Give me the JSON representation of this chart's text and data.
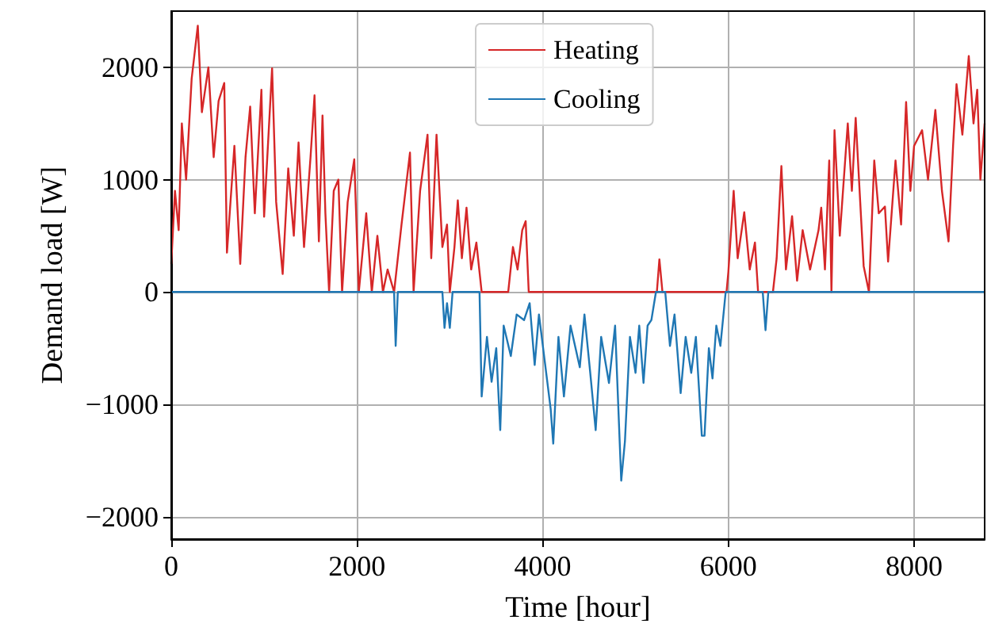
{
  "chart_data": {
    "type": "line",
    "xlabel": "Time [hour]",
    "ylabel": "Demand load [W]",
    "xlim": [
      0,
      8760
    ],
    "xticks": [
      0,
      2000,
      4000,
      6000,
      8000
    ],
    "ylim": [
      -2200,
      2500
    ],
    "yticks": [
      {
        "value": -2000,
        "label": "−2000"
      },
      {
        "value": -1000,
        "label": "−1000"
      },
      0,
      1000,
      2000
    ],
    "grid": true,
    "legend": "top",
    "marker": "none",
    "line_style": "solid",
    "series": [
      {
        "name": "Heating",
        "color": "#d62728",
        "x": [
          0,
          40,
          80,
          114,
          160,
          220,
          286,
          330,
          400,
          457,
          510,
          571,
          600,
          680,
          743,
          800,
          850,
          900,
          971,
          1000,
          1086,
          1130,
          1200,
          1260,
          1320,
          1371,
          1430,
          1500,
          1543,
          1590,
          1629,
          1660,
          1700,
          1750,
          1800,
          1840,
          1900,
          1971,
          2020,
          2100,
          2160,
          2220,
          2280,
          2330,
          2400,
          2480,
          2571,
          2610,
          2680,
          2760,
          2800,
          2857,
          2920,
          2970,
          3000,
          3050,
          3086,
          3130,
          3180,
          3230,
          3286,
          3343,
          3629,
          3680,
          3730,
          3780,
          3817,
          3850,
          5230,
          5257,
          5290,
          5980,
          6000,
          6057,
          6100,
          6171,
          6230,
          6286,
          6320,
          6480,
          6520,
          6571,
          6620,
          6686,
          6740,
          6800,
          6880,
          6971,
          7000,
          7040,
          7086,
          7110,
          7143,
          7200,
          7286,
          7330,
          7371,
          7457,
          7514,
          7571,
          7620,
          7686,
          7720,
          7800,
          7860,
          7914,
          7960,
          8000,
          8086,
          8150,
          8229,
          8300,
          8371,
          8420,
          8457,
          8520,
          8589,
          8640,
          8680,
          8714,
          8760
        ],
        "values": [
          250,
          900,
          550,
          1500,
          1000,
          1900,
          2370,
          1600,
          2000,
          1200,
          1700,
          1860,
          350,
          1300,
          250,
          1200,
          1650,
          700,
          1800,
          670,
          1990,
          800,
          160,
          1100,
          500,
          1330,
          400,
          1200,
          1750,
          450,
          1570,
          700,
          0,
          900,
          1000,
          0,
          800,
          1180,
          0,
          700,
          0,
          500,
          0,
          200,
          0,
          600,
          1240,
          0,
          900,
          1400,
          300,
          1400,
          400,
          600,
          0,
          400,
          815,
          300,
          750,
          200,
          440,
          0,
          0,
          400,
          200,
          550,
          630,
          0,
          0,
          290,
          0,
          0,
          180,
          900,
          300,
          710,
          200,
          440,
          0,
          0,
          300,
          1120,
          200,
          675,
          100,
          550,
          200,
          550,
          750,
          200,
          1170,
          0,
          1440,
          500,
          1500,
          900,
          1550,
          230,
          0,
          1170,
          700,
          760,
          270,
          1170,
          600,
          1690,
          900,
          1300,
          1440,
          1000,
          1620,
          900,
          450,
          1300,
          1850,
          1400,
          2100,
          1500,
          1800,
          1000,
          1500
        ]
      },
      {
        "name": "Cooling",
        "color": "#1f77b4",
        "x": [
          0,
          2400,
          2417,
          2440,
          2920,
          2943,
          2970,
          3000,
          3030,
          3320,
          3343,
          3400,
          3450,
          3500,
          3543,
          3580,
          3657,
          3720,
          3800,
          3860,
          3914,
          3960,
          4020,
          4086,
          4114,
          4170,
          4229,
          4300,
          4400,
          4450,
          4510,
          4571,
          4630,
          4714,
          4780,
          4846,
          4886,
          4940,
          5000,
          5040,
          5086,
          5130,
          5171,
          5220,
          5320,
          5371,
          5420,
          5486,
          5540,
          5600,
          5650,
          5714,
          5743,
          5790,
          5829,
          5870,
          5914,
          5971,
          6370,
          6400,
          6430,
          8760
        ],
        "values": [
          0,
          0,
          -480,
          0,
          0,
          -320,
          -100,
          -320,
          0,
          0,
          -930,
          -400,
          -800,
          -500,
          -1230,
          -300,
          -570,
          -200,
          -250,
          -100,
          -650,
          -200,
          -600,
          -1040,
          -1350,
          -400,
          -930,
          -300,
          -670,
          -200,
          -700,
          -1230,
          -400,
          -810,
          -300,
          -1680,
          -1330,
          -400,
          -720,
          -300,
          -810,
          -300,
          -250,
          0,
          0,
          -480,
          -200,
          -900,
          -400,
          -720,
          -400,
          -1280,
          -1280,
          -500,
          -770,
          -300,
          -480,
          0,
          0,
          -340,
          0,
          0
        ]
      }
    ]
  }
}
